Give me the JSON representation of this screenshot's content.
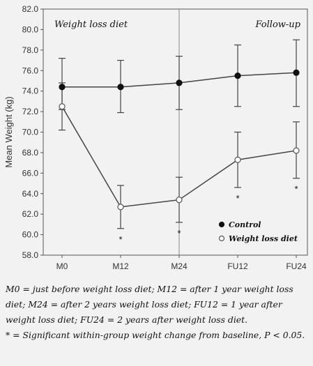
{
  "chart_data": {
    "type": "line",
    "categories": [
      "M0",
      "M12",
      "M24",
      "FU12",
      "FU24"
    ],
    "ylabel": "Mean Weight (kg)",
    "xlabel": "",
    "ylim": [
      58.0,
      82.0
    ],
    "yticks": [
      "58.0",
      "60.0",
      "62.0",
      "64.0",
      "66.0",
      "68.0",
      "70.0",
      "72.0",
      "74.0",
      "76.0",
      "78.0",
      "80.0",
      "82.0"
    ],
    "grid": false,
    "legend_position": "bottom-right",
    "region_labels": [
      "Weight loss diet",
      "Follow-up"
    ],
    "series": [
      {
        "name": "Control",
        "marker": "filled-circle",
        "values": [
          74.4,
          74.4,
          74.8,
          75.5,
          75.8
        ],
        "err_low": [
          72.2,
          71.9,
          72.2,
          72.5,
          72.5
        ],
        "err_high": [
          77.2,
          77.0,
          77.4,
          78.5,
          79.0
        ]
      },
      {
        "name": "Weight loss diet",
        "marker": "open-circle",
        "values": [
          72.5,
          62.7,
          63.4,
          67.3,
          68.2
        ],
        "err_low": [
          70.2,
          60.6,
          61.2,
          64.6,
          65.5
        ],
        "err_high": [
          74.8,
          64.8,
          65.6,
          70.0,
          71.0
        ],
        "significance": [
          "",
          "*",
          "*",
          "*",
          "*"
        ]
      }
    ],
    "divider_at": "M24",
    "colors": {
      "line": "#444444",
      "background": "#f2f2f2",
      "axis": "#555555"
    }
  },
  "caption": {
    "line1": "M0 = just before weight loss diet; M12 = after 1 year weight loss diet; M24 = after 2 years weight loss diet; FU12 = 1 year after weight loss diet; FU24 = 2 years after weight loss diet.",
    "line2": "* = Significant within-group weight change from baseline, P < 0.05."
  }
}
